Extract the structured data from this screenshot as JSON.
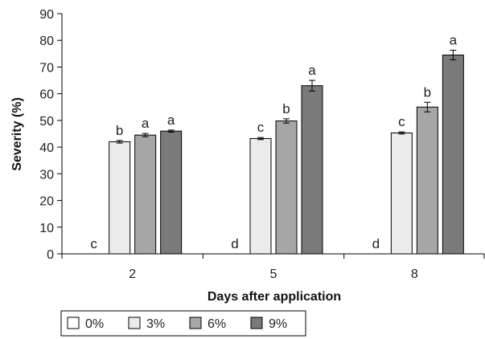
{
  "chart_data": {
    "type": "bar",
    "xlabel": "Days after application",
    "ylabel": "Severity (%)",
    "ylim": [
      0,
      90
    ],
    "yticks": [
      0,
      10,
      20,
      30,
      40,
      50,
      60,
      70,
      80,
      90
    ],
    "grid": false,
    "legend_position": "bottom-left",
    "categories": [
      "2",
      "5",
      "8"
    ],
    "series": [
      {
        "name": "0%",
        "color": "#ffffff",
        "values": [
          0,
          0,
          0
        ],
        "errors": [
          0,
          0,
          0
        ],
        "letters": [
          "c",
          "d",
          "d"
        ]
      },
      {
        "name": "3%",
        "color": "#ebebeb",
        "values": [
          42,
          43.2,
          45.3
        ],
        "errors": [
          0.5,
          0.4,
          0.4
        ],
        "letters": [
          "b",
          "c",
          "c"
        ]
      },
      {
        "name": "6%",
        "color": "#a6a6a6",
        "values": [
          44.5,
          49.8,
          55
        ],
        "errors": [
          0.6,
          0.8,
          1.8
        ],
        "letters": [
          "a",
          "b",
          "b"
        ]
      },
      {
        "name": "9%",
        "color": "#7a7a7a",
        "values": [
          46,
          63,
          74.5
        ],
        "errors": [
          0.4,
          2,
          1.8
        ],
        "letters": [
          "a",
          "a",
          "a"
        ]
      }
    ]
  }
}
